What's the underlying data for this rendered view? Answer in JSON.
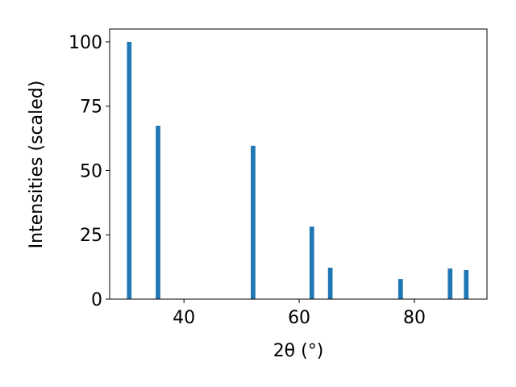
{
  "chart_data": {
    "type": "bar",
    "x": [
      30.5,
      35.5,
      52.0,
      62.2,
      65.4,
      77.6,
      86.2,
      89.0
    ],
    "values": [
      100,
      67.4,
      59.6,
      28.2,
      12.2,
      7.8,
      11.9,
      11.3
    ],
    "bar_width": 0.8,
    "color": "#1f77b4",
    "xlabel": "2θ (°)",
    "ylabel": "Intensities (scaled)",
    "xlim": [
      27.1,
      92.6
    ],
    "xticks": [
      40,
      60,
      80
    ],
    "ylim": [
      0,
      105
    ],
    "yticks": [
      0,
      25,
      50,
      75,
      100
    ]
  }
}
